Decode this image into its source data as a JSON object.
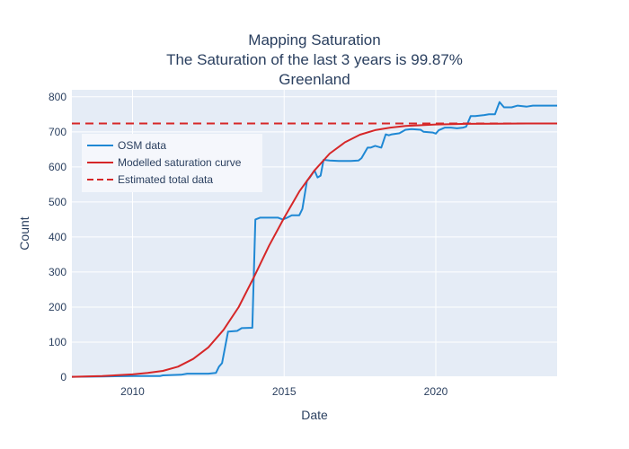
{
  "chart_data": {
    "type": "line",
    "title_lines": [
      "Mapping Saturation",
      "The Saturation of the last 3 years is 99.87%",
      "Greenland"
    ],
    "xlabel": "Date",
    "ylabel": "Count",
    "xlim": [
      2008.0,
      2024.0
    ],
    "ylim": [
      0,
      820
    ],
    "xticks": [
      2010,
      2015,
      2020
    ],
    "xtick_labels": [
      "2010",
      "2015",
      "2020"
    ],
    "yticks": [
      0,
      100,
      200,
      300,
      400,
      500,
      600,
      700,
      800
    ],
    "ytick_labels": [
      "0",
      "100",
      "200",
      "300",
      "400",
      "500",
      "600",
      "700",
      "800"
    ],
    "grid": true,
    "legend_position": "top-left",
    "colors": {
      "plot_bg": "#e5ecf6",
      "grid": "#ffffff",
      "osm": "#1f88d4",
      "curve": "#d62728",
      "estimate": "#d62728"
    },
    "series": [
      {
        "name": "OSM data",
        "style": "solid",
        "x": [
          2008.0,
          2009.0,
          2010.0,
          2010.9,
          2011.0,
          2011.6,
          2011.8,
          2012.5,
          2012.75,
          2012.85,
          2012.95,
          2013.15,
          2013.45,
          2013.6,
          2013.95,
          2014.05,
          2014.2,
          2014.5,
          2014.8,
          2014.95,
          2015.1,
          2015.25,
          2015.5,
          2015.6,
          2015.75,
          2015.85,
          2016.0,
          2016.1,
          2016.2,
          2016.3,
          2016.5,
          2016.8,
          2017.2,
          2017.45,
          2017.55,
          2017.65,
          2017.75,
          2017.85,
          2018.0,
          2018.2,
          2018.35,
          2018.45,
          2018.55,
          2018.8,
          2019.0,
          2019.2,
          2019.5,
          2019.6,
          2019.9,
          2020.0,
          2020.1,
          2020.3,
          2020.5,
          2020.7,
          2020.9,
          2021.0,
          2021.15,
          2021.3,
          2021.6,
          2021.75,
          2021.95,
          2022.1,
          2022.25,
          2022.5,
          2022.7,
          2023.0,
          2023.2,
          2023.5,
          2024.0
        ],
        "y": [
          1,
          2,
          3,
          3,
          5,
          7,
          10,
          10,
          12,
          30,
          40,
          130,
          132,
          140,
          141,
          450,
          455,
          455,
          455,
          450,
          455,
          462,
          462,
          480,
          560,
          570,
          590,
          570,
          575,
          620,
          618,
          617,
          617,
          618,
          625,
          640,
          655,
          655,
          660,
          655,
          693,
          690,
          693,
          696,
          706,
          708,
          706,
          700,
          698,
          695,
          705,
          712,
          712,
          710,
          712,
          715,
          745,
          745,
          748,
          750,
          750,
          785,
          770,
          770,
          775,
          772,
          775,
          775,
          775
        ]
      },
      {
        "name": "Modelled saturation curve",
        "style": "solid",
        "x": [
          2008.0,
          2009.0,
          2010.0,
          2010.5,
          2011.0,
          2011.5,
          2012.0,
          2012.5,
          2013.0,
          2013.5,
          2014.0,
          2014.5,
          2015.0,
          2015.5,
          2016.0,
          2016.5,
          2017.0,
          2017.5,
          2018.0,
          2018.5,
          2019.0,
          2020.0,
          2021.0,
          2022.0,
          2023.0,
          2024.0
        ],
        "y": [
          1,
          3,
          8,
          12,
          18,
          30,
          52,
          85,
          135,
          200,
          285,
          375,
          455,
          530,
          590,
          638,
          670,
          692,
          705,
          712,
          717,
          721,
          723,
          723.5,
          723.8,
          724
        ]
      },
      {
        "name": "Estimated total data",
        "style": "dashed",
        "x": [
          2008.0,
          2024.0
        ],
        "y": [
          724,
          724
        ]
      }
    ]
  }
}
